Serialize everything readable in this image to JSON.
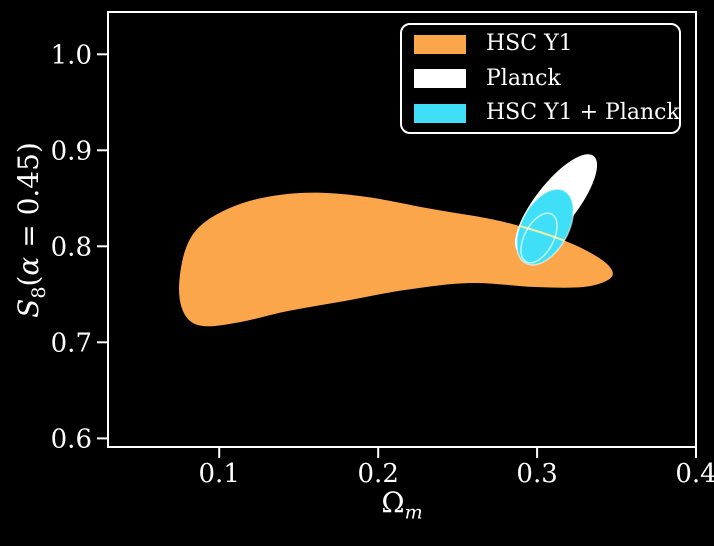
{
  "figure": {
    "background": "#000000",
    "plot_background": "#000000",
    "spine_color": "#ffffff",
    "tick_color": "#ffffff",
    "text_color": "#ffffff"
  },
  "chart_data": {
    "type": "contour",
    "title": "",
    "xlabel": {
      "base": "Ω",
      "sub": "m"
    },
    "ylabel": {
      "base": "S",
      "sub": "8",
      "open": "(",
      "alpha": "α",
      "close": " = 0.45)"
    },
    "xlim": [
      0.03,
      0.4
    ],
    "ylim": [
      0.591,
      1.044
    ],
    "xticks": [
      0.1,
      0.2,
      0.3,
      0.4
    ],
    "yticks": [
      0.6,
      0.7,
      0.8,
      0.9,
      1.0
    ],
    "grid": false,
    "legend": {
      "position": "upper right",
      "entries": [
        {
          "label": "HSC Y1",
          "color": "#FBA64B"
        },
        {
          "label": "Planck",
          "color": "#FFFFFF"
        },
        {
          "label": "HSC Y1 + Planck",
          "color": "#3EDFF7"
        }
      ]
    },
    "series": [
      {
        "name": "HSC Y1",
        "style": "filled-contour",
        "color": "#FBA64B",
        "outline_xy": [
          [
            0.0747,
            0.7566
          ],
          [
            0.0791,
            0.7982
          ],
          [
            0.091,
            0.8253
          ],
          [
            0.1168,
            0.8461
          ],
          [
            0.1508,
            0.8555
          ],
          [
            0.1886,
            0.8524
          ],
          [
            0.2339,
            0.8388
          ],
          [
            0.2767,
            0.8263
          ],
          [
            0.3144,
            0.8076
          ],
          [
            0.3371,
            0.7899
          ],
          [
            0.3471,
            0.7753
          ],
          [
            0.3446,
            0.7649
          ],
          [
            0.3289,
            0.7576
          ],
          [
            0.2987,
            0.7576
          ],
          [
            0.2578,
            0.7618
          ],
          [
            0.2169,
            0.7545
          ],
          [
            0.1791,
            0.743
          ],
          [
            0.1433,
            0.7326
          ],
          [
            0.1131,
            0.7211
          ],
          [
            0.0898,
            0.717
          ],
          [
            0.0785,
            0.7284
          ]
        ]
      },
      {
        "name": "Planck",
        "style": "filled-ellipse",
        "color": "#FFFFFF",
        "center": [
          0.3119,
          0.8441
        ],
        "semi_axes": [
          0.0132,
          0.0635
        ],
        "tilt_deg": 38
      },
      {
        "name": "HSC Y1 + Planck",
        "style": "filled-ellipse",
        "color": "#3EDFF7",
        "edge_color": "rgba(255,255,255,0.55)",
        "center": [
          0.305,
          0.8201
        ],
        "semi_axes": [
          0.0148,
          0.0427
        ],
        "tilt_deg": 28,
        "inner_68": {
          "center": [
            0.3012,
            0.8087
          ],
          "semi_axes": [
            0.0091,
            0.0281
          ],
          "tilt_deg": 28,
          "edge_color": "rgba(255,255,255,0.65)"
        }
      }
    ],
    "overlays": [
      {
        "name": "hsc-edge-through-combined",
        "color": "#ECF2AA"
      }
    ]
  }
}
